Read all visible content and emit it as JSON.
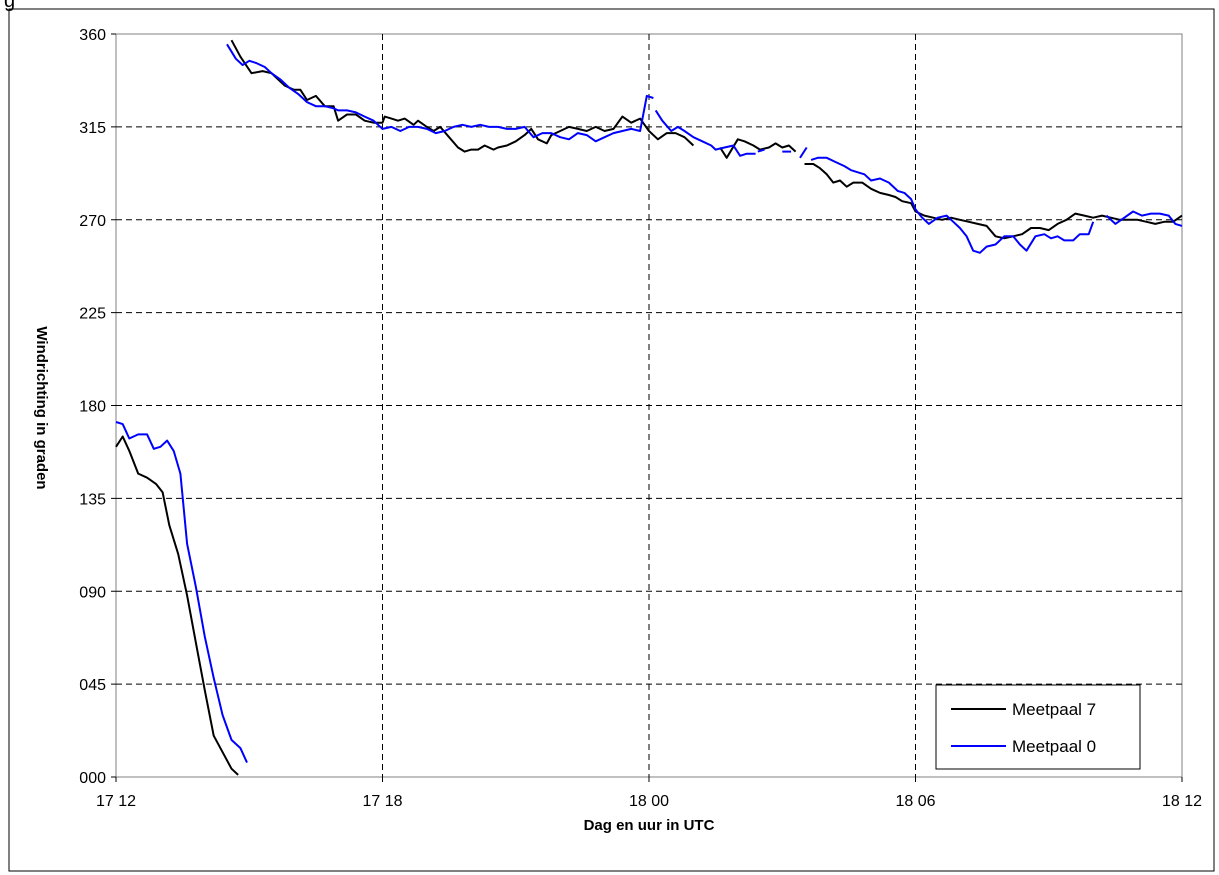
{
  "chart_data": {
    "type": "line",
    "title": "",
    "top_text": "g",
    "xlabel": "Dag en uur in UTC",
    "ylabel": "Windrichting in graden",
    "xlim": [
      0,
      24
    ],
    "ylim": [
      0,
      360
    ],
    "x_ticks": [
      {
        "x": 0,
        "label": "17 12"
      },
      {
        "x": 6,
        "label": "17 18"
      },
      {
        "x": 12,
        "label": "18 00"
      },
      {
        "x": 18,
        "label": "18 06"
      },
      {
        "x": 24,
        "label": "18 12"
      }
    ],
    "y_ticks": [
      {
        "y": 0,
        "label": "000"
      },
      {
        "y": 45,
        "label": "045"
      },
      {
        "y": 90,
        "label": "090"
      },
      {
        "y": 135,
        "label": "135"
      },
      {
        "y": 180,
        "label": "180"
      },
      {
        "y": 225,
        "label": "225"
      },
      {
        "y": 270,
        "label": "270"
      },
      {
        "y": 315,
        "label": "315"
      },
      {
        "y": 360,
        "label": "360"
      }
    ],
    "grid": true,
    "legend_position": "bottom-right",
    "series": [
      {
        "name": "Meetpaal 7",
        "color": "#000000",
        "segments": [
          [
            [
              0,
              160
            ],
            [
              0.15,
              165
            ],
            [
              0.3,
              158
            ],
            [
              0.5,
              147
            ],
            [
              0.7,
              145
            ],
            [
              0.9,
              142
            ],
            [
              1.05,
              138
            ],
            [
              1.2,
              122
            ],
            [
              1.4,
              108
            ],
            [
              1.6,
              88
            ],
            [
              1.8,
              65
            ],
            [
              2.0,
              42
            ],
            [
              2.2,
              20
            ],
            [
              2.4,
              12
            ],
            [
              2.6,
              4
            ],
            [
              2.75,
              1
            ]
          ],
          [
            [
              2.6,
              357
            ],
            [
              2.8,
              349
            ],
            [
              3.05,
              341
            ],
            [
              3.3,
              342
            ],
            [
              3.5,
              341
            ],
            [
              3.65,
              338
            ],
            [
              3.8,
              335
            ],
            [
              4.0,
              333
            ],
            [
              4.15,
              333
            ],
            [
              4.3,
              328
            ],
            [
              4.5,
              330
            ],
            [
              4.7,
              325
            ],
            [
              4.9,
              325
            ],
            [
              5.0,
              318
            ],
            [
              5.2,
              321
            ],
            [
              5.4,
              321
            ],
            [
              5.6,
              318
            ],
            [
              5.8,
              317
            ],
            [
              6.0,
              317
            ],
            [
              6.05,
              320
            ],
            [
              6.2,
              319
            ],
            [
              6.35,
              318
            ],
            [
              6.5,
              319
            ],
            [
              6.7,
              316
            ],
            [
              6.8,
              318
            ],
            [
              7.0,
              315
            ],
            [
              7.15,
              313
            ],
            [
              7.3,
              315
            ],
            [
              7.5,
              310
            ],
            [
              7.7,
              305
            ],
            [
              7.85,
              303
            ],
            [
              8.0,
              304
            ],
            [
              8.15,
              304
            ],
            [
              8.3,
              306
            ],
            [
              8.5,
              304
            ],
            [
              8.6,
              305
            ],
            [
              8.8,
              306
            ],
            [
              9.0,
              308
            ],
            [
              9.2,
              311
            ],
            [
              9.35,
              314
            ],
            [
              9.5,
              309
            ],
            [
              9.7,
              307
            ],
            [
              9.8,
              311
            ],
            [
              10.0,
              313
            ],
            [
              10.2,
              315
            ],
            [
              10.4,
              314
            ],
            [
              10.6,
              313
            ],
            [
              10.8,
              315
            ],
            [
              11.0,
              313
            ],
            [
              11.2,
              314
            ],
            [
              11.4,
              320
            ],
            [
              11.6,
              317
            ],
            [
              11.8,
              319
            ],
            [
              12.0,
              313
            ],
            [
              12.2,
              309
            ],
            [
              12.4,
              312
            ],
            [
              12.6,
              312
            ],
            [
              12.8,
              310
            ],
            [
              13.0,
              306
            ]
          ],
          [
            [
              13.6,
              305
            ],
            [
              13.75,
              300
            ],
            [
              14.0,
              309
            ],
            [
              14.15,
              308
            ],
            [
              14.35,
              306
            ],
            [
              14.5,
              304
            ],
            [
              14.7,
              305
            ],
            [
              14.85,
              307
            ],
            [
              15.0,
              305
            ],
            [
              15.15,
              306
            ],
            [
              15.3,
              303
            ]
          ],
          [
            [
              15.5,
              297
            ],
            [
              15.7,
              297
            ],
            [
              15.85,
              295
            ],
            [
              16.0,
              292
            ],
            [
              16.15,
              288
            ],
            [
              16.3,
              289
            ],
            [
              16.45,
              286
            ],
            [
              16.6,
              288
            ],
            [
              16.8,
              288
            ],
            [
              17.0,
              285
            ],
            [
              17.2,
              283
            ],
            [
              17.4,
              282
            ],
            [
              17.55,
              281
            ],
            [
              17.7,
              279
            ],
            [
              17.9,
              278
            ],
            [
              18.0,
              274
            ],
            [
              18.2,
              272
            ],
            [
              18.4,
              271
            ],
            [
              18.6,
              270
            ],
            [
              18.8,
              271
            ],
            [
              19.0,
              270
            ],
            [
              19.2,
              269
            ],
            [
              19.4,
              268
            ],
            [
              19.6,
              267
            ],
            [
              19.8,
              262
            ],
            [
              20.0,
              261
            ],
            [
              20.2,
              262
            ],
            [
              20.4,
              263
            ],
            [
              20.6,
              266
            ],
            [
              20.8,
              266
            ],
            [
              21.0,
              265
            ],
            [
              21.2,
              268
            ],
            [
              21.4,
              270
            ],
            [
              21.6,
              273
            ],
            [
              21.8,
              272
            ],
            [
              22.0,
              271
            ],
            [
              22.2,
              272
            ],
            [
              22.4,
              271
            ],
            [
              22.6,
              270
            ],
            [
              22.8,
              270
            ],
            [
              23.0,
              270
            ],
            [
              23.2,
              269
            ],
            [
              23.4,
              268
            ],
            [
              23.6,
              269
            ],
            [
              23.8,
              269
            ],
            [
              24.0,
              272
            ]
          ]
        ]
      },
      {
        "name": "Meetpaal 0",
        "color": "#0000ff",
        "segments": [
          [
            [
              0,
              172
            ],
            [
              0.15,
              171
            ],
            [
              0.3,
              164
            ],
            [
              0.5,
              166
            ],
            [
              0.7,
              166
            ],
            [
              0.85,
              159
            ],
            [
              1.0,
              160
            ],
            [
              1.15,
              163
            ],
            [
              1.3,
              158
            ],
            [
              1.45,
              147
            ],
            [
              1.6,
              113
            ],
            [
              1.8,
              92
            ],
            [
              2.0,
              68
            ],
            [
              2.2,
              48
            ],
            [
              2.4,
              30
            ],
            [
              2.6,
              18
            ],
            [
              2.8,
              14
            ],
            [
              2.95,
              7
            ]
          ],
          [
            [
              2.5,
              355
            ],
            [
              2.7,
              348
            ],
            [
              2.85,
              345
            ],
            [
              3.0,
              347
            ],
            [
              3.15,
              346
            ],
            [
              3.35,
              344
            ],
            [
              3.5,
              341
            ],
            [
              3.7,
              338
            ],
            [
              3.9,
              334
            ],
            [
              4.1,
              331
            ],
            [
              4.3,
              327
            ],
            [
              4.5,
              325
            ],
            [
              4.7,
              325
            ],
            [
              4.9,
              324
            ],
            [
              5.0,
              323
            ],
            [
              5.2,
              323
            ],
            [
              5.4,
              322
            ],
            [
              5.6,
              320
            ],
            [
              5.8,
              318
            ],
            [
              6.0,
              314
            ],
            [
              6.2,
              315
            ],
            [
              6.4,
              313
            ],
            [
              6.6,
              315
            ],
            [
              6.8,
              315
            ],
            [
              7.0,
              314
            ],
            [
              7.2,
              312
            ],
            [
              7.4,
              313
            ],
            [
              7.6,
              315
            ],
            [
              7.8,
              316
            ],
            [
              8.0,
              315
            ],
            [
              8.2,
              316
            ],
            [
              8.4,
              315
            ],
            [
              8.6,
              315
            ],
            [
              8.8,
              314
            ],
            [
              9.0,
              314
            ],
            [
              9.2,
              315
            ],
            [
              9.4,
              310
            ],
            [
              9.6,
              312
            ],
            [
              9.8,
              312
            ],
            [
              10.0,
              310
            ],
            [
              10.2,
              309
            ],
            [
              10.4,
              312
            ],
            [
              10.6,
              311
            ],
            [
              10.8,
              308
            ],
            [
              11.0,
              310
            ],
            [
              11.2,
              312
            ],
            [
              11.4,
              313
            ],
            [
              11.6,
              314
            ],
            [
              11.8,
              313
            ],
            [
              11.95,
              330
            ],
            [
              12.1,
              329
            ]
          ],
          [
            [
              12.15,
              323
            ],
            [
              12.3,
              318
            ],
            [
              12.5,
              313
            ],
            [
              12.65,
              315
            ],
            [
              12.8,
              313
            ],
            [
              13.0,
              310
            ],
            [
              13.2,
              308
            ],
            [
              13.4,
              306
            ],
            [
              13.5,
              304
            ],
            [
              13.7,
              305
            ],
            [
              13.9,
              306
            ],
            [
              14.05,
              301
            ],
            [
              14.2,
              302
            ],
            [
              14.4,
              302
            ]
          ],
          [
            [
              14.45,
              303
            ],
            [
              14.6,
              304
            ]
          ],
          [
            [
              15.0,
              303
            ],
            [
              15.2,
              303
            ]
          ],
          [
            [
              15.4,
              300
            ],
            [
              15.55,
              305
            ]
          ],
          [
            [
              15.65,
              299
            ],
            [
              15.8,
              300
            ],
            [
              16.0,
              300
            ],
            [
              16.2,
              298
            ],
            [
              16.4,
              296
            ],
            [
              16.55,
              294
            ],
            [
              16.7,
              293
            ],
            [
              16.85,
              292
            ],
            [
              17.0,
              289
            ],
            [
              17.2,
              290
            ],
            [
              17.4,
              288
            ],
            [
              17.6,
              284
            ],
            [
              17.75,
              283
            ],
            [
              17.9,
              280
            ],
            [
              18.0,
              275
            ],
            [
              18.15,
              271
            ],
            [
              18.3,
              268
            ],
            [
              18.5,
              271
            ],
            [
              18.7,
              272
            ],
            [
              18.85,
              269
            ],
            [
              19.0,
              266
            ],
            [
              19.15,
              262
            ],
            [
              19.3,
              255
            ],
            [
              19.45,
              254
            ],
            [
              19.6,
              257
            ],
            [
              19.8,
              258
            ],
            [
              20.0,
              262
            ],
            [
              20.2,
              262
            ],
            [
              20.35,
              258
            ],
            [
              20.5,
              255
            ],
            [
              20.7,
              262
            ],
            [
              20.9,
              263
            ],
            [
              21.05,
              261
            ],
            [
              21.2,
              262
            ],
            [
              21.35,
              260
            ],
            [
              21.55,
              260
            ],
            [
              21.7,
              263
            ],
            [
              21.9,
              263
            ],
            [
              22.0,
              269
            ]
          ],
          [
            [
              22.3,
              272
            ],
            [
              22.5,
              268
            ],
            [
              22.7,
              271
            ],
            [
              22.9,
              274
            ],
            [
              23.1,
              272
            ],
            [
              23.3,
              273
            ],
            [
              23.5,
              273
            ],
            [
              23.7,
              272
            ],
            [
              23.85,
              268
            ],
            [
              24.0,
              267
            ]
          ]
        ]
      }
    ]
  }
}
